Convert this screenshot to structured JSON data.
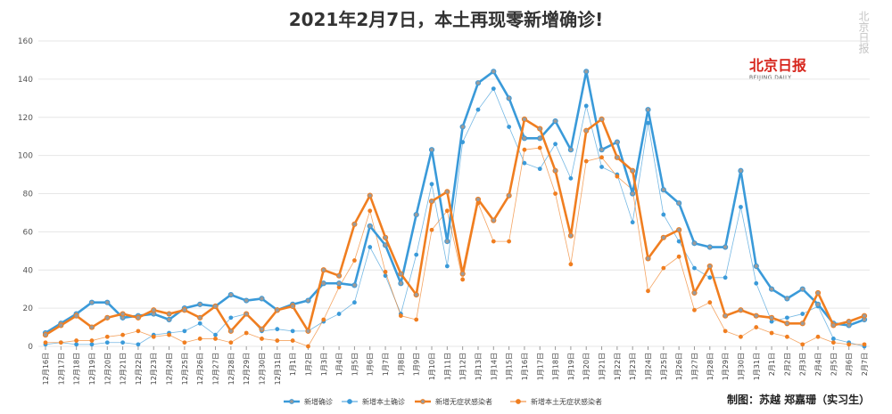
{
  "chart_data": {
    "type": "line",
    "title": "2021年2月7日，本土再现零新增确诊!",
    "xlabel": "",
    "ylabel": "",
    "ylim": [
      0,
      160
    ],
    "yticks": [
      0,
      20,
      40,
      60,
      80,
      100,
      120,
      140,
      160
    ],
    "grid": true,
    "legend_position": "bottom",
    "categories": [
      "12月16日",
      "12月17日",
      "12月18日",
      "12月19日",
      "12月20日",
      "12月21日",
      "12月22日",
      "12月23日",
      "12月24日",
      "12月25日",
      "12月26日",
      "12月27日",
      "12月28日",
      "12月29日",
      "12月30日",
      "12月31日",
      "1月1日",
      "1月2日",
      "1月3日",
      "1月4日",
      "1月5日",
      "1月6日",
      "1月7日",
      "1月8日",
      "1月9日",
      "1月10日",
      "1月11日",
      "1月12日",
      "1月13日",
      "1月14日",
      "1月15日",
      "1月16日",
      "1月17日",
      "1月18日",
      "1月19日",
      "1月20日",
      "1月21日",
      "1月22日",
      "1月23日",
      "1月24日",
      "1月25日",
      "1月26日",
      "1月27日",
      "1月28日",
      "1月29日",
      "1月30日",
      "1月31日",
      "2月1日",
      "2月2日",
      "2月3日",
      "2月4日",
      "2月5日",
      "2月6日",
      "2月7日"
    ],
    "series": [
      {
        "name": "新增确诊",
        "color": "#3a9ad9",
        "style": "bold",
        "values": [
          7,
          12,
          17,
          23,
          23,
          15,
          16,
          17,
          14,
          20,
          22,
          21,
          27,
          24,
          25,
          19,
          22,
          24,
          33,
          33,
          32,
          63,
          53,
          33,
          69,
          103,
          55,
          115,
          138,
          144,
          130,
          109,
          109,
          118,
          103,
          144,
          103,
          107,
          80,
          124,
          82,
          75,
          54,
          52,
          52,
          92,
          42,
          30,
          25,
          30,
          22,
          12,
          11,
          14
        ]
      },
      {
        "name": "新增本土确诊",
        "color": "#3a9ad9",
        "style": "thin",
        "values": [
          1,
          2,
          1,
          1,
          2,
          2,
          1,
          6,
          7,
          8,
          12,
          6,
          15,
          17,
          8,
          9,
          8,
          8,
          13,
          17,
          23,
          52,
          37,
          17,
          48,
          85,
          42,
          107,
          124,
          135,
          115,
          96,
          93,
          106,
          88,
          126,
          94,
          90,
          65,
          117,
          69,
          55,
          41,
          36,
          36,
          73,
          33,
          13,
          15,
          17,
          21,
          4,
          2,
          0
        ]
      },
      {
        "name": "新增无症状感染者",
        "color": "#f07e20",
        "style": "bold",
        "values": [
          6,
          11,
          16,
          10,
          15,
          17,
          15,
          19,
          17,
          19,
          15,
          21,
          8,
          17,
          9,
          19,
          21,
          8,
          40,
          37,
          64,
          79,
          57,
          38,
          27,
          76,
          81,
          38,
          77,
          66,
          79,
          119,
          114,
          92,
          58,
          113,
          119,
          99,
          92,
          46,
          57,
          61,
          28,
          42,
          16,
          19,
          16,
          15,
          12,
          12,
          28,
          11,
          13,
          16
        ]
      },
      {
        "name": "新增本土无症状感染者",
        "color": "#f07e20",
        "style": "thin",
        "values": [
          2,
          2,
          3,
          3,
          5,
          6,
          8,
          5,
          6,
          2,
          4,
          4,
          2,
          7,
          4,
          3,
          3,
          0,
          14,
          31,
          45,
          71,
          39,
          16,
          14,
          61,
          71,
          35,
          75,
          55,
          55,
          103,
          104,
          80,
          43,
          97,
          99,
          89,
          82,
          29,
          41,
          47,
          19,
          23,
          8,
          5,
          10,
          7,
          5,
          1,
          5,
          2,
          1,
          1
        ]
      }
    ]
  },
  "title": "2021年2月7日，本土再现零新增确诊!",
  "logo": {
    "main": "北京日报",
    "sub": "BEIJING DAILY"
  },
  "watermark": "北京日报",
  "credit": "制图：苏越 郑嘉珊（实习生）"
}
